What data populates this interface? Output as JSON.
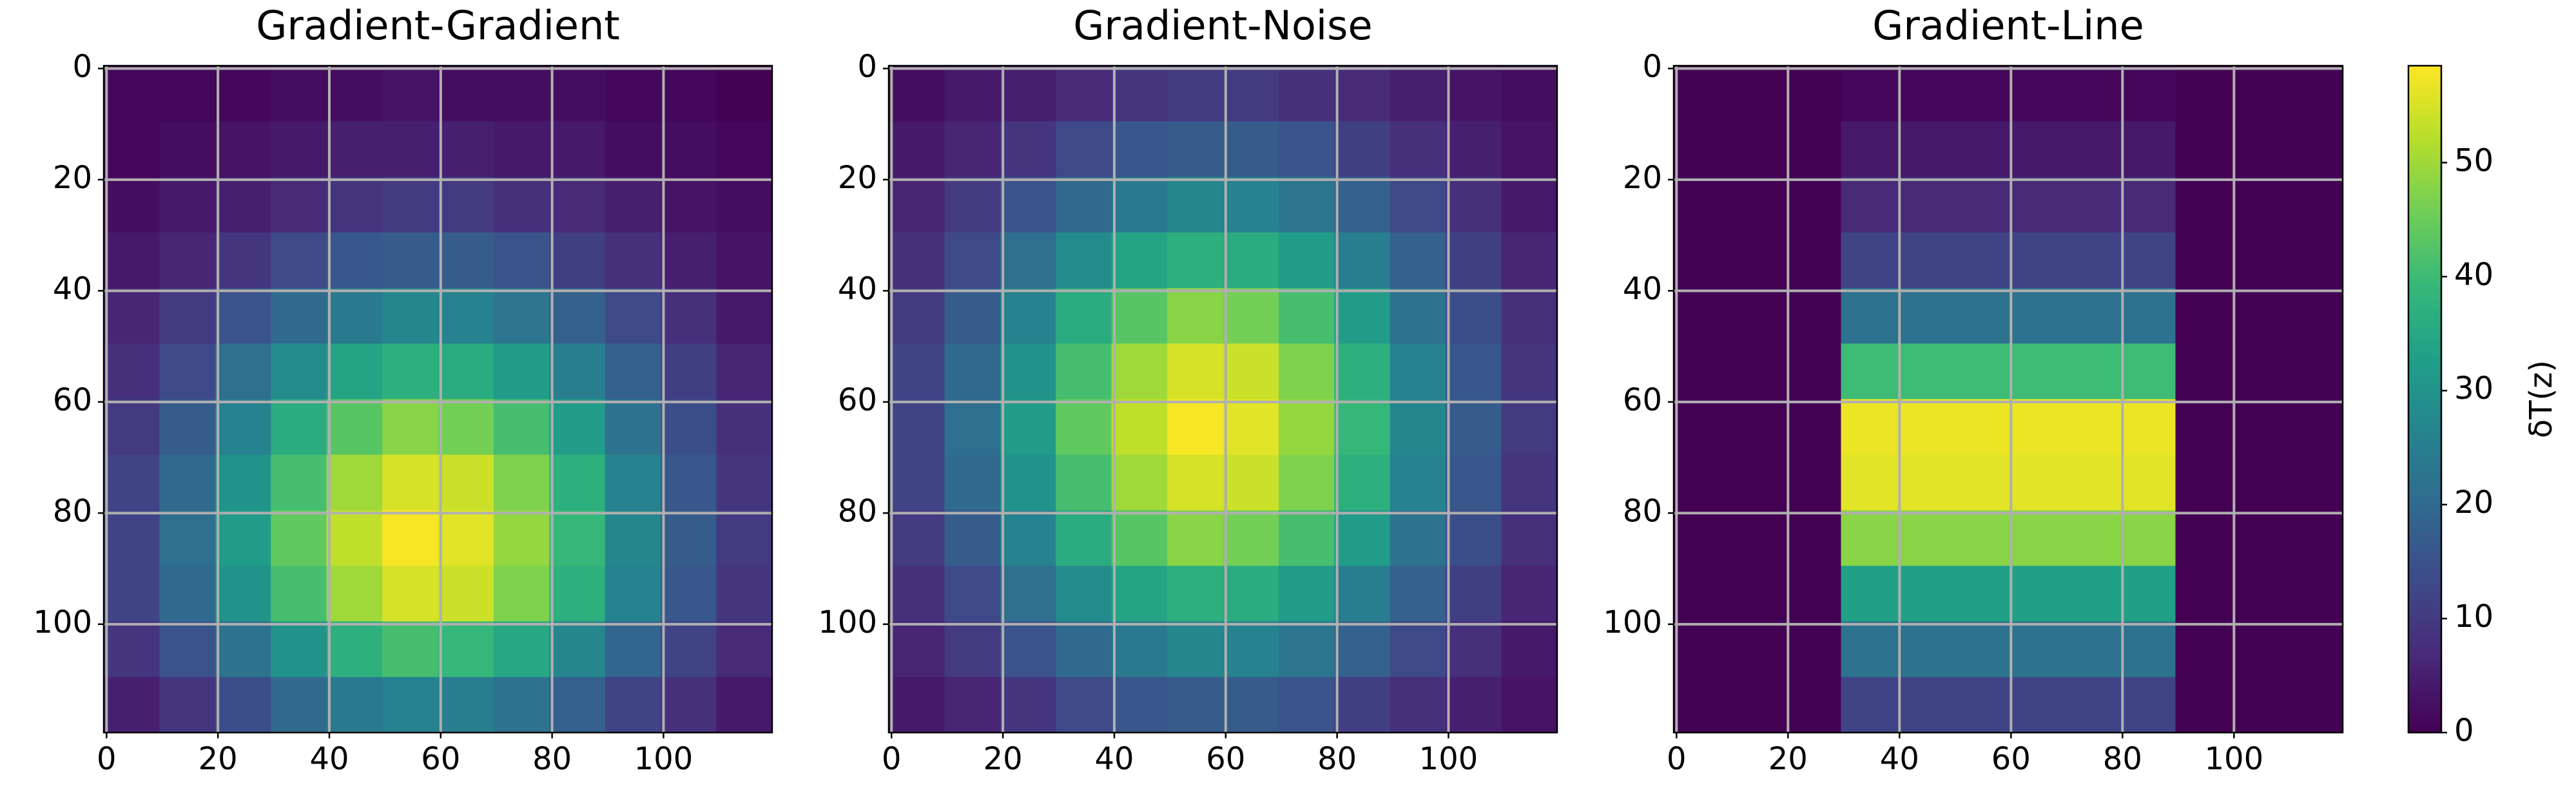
{
  "chart_data": [
    {
      "type": "heatmap",
      "title": "Gradient-Gradient",
      "x": [
        4.5,
        14.5,
        24.5,
        34.5,
        44.5,
        54.5,
        64.5,
        74.5,
        84.5,
        94.5,
        104.5,
        114.5
      ],
      "y": [
        4.5,
        14.5,
        24.5,
        34.5,
        44.5,
        54.5,
        64.5,
        74.5,
        84.5,
        94.5,
        104.5,
        114.5
      ],
      "values": [
        [
          1,
          1,
          1,
          2,
          2,
          3,
          2,
          2,
          2,
          1,
          1,
          0
        ],
        [
          1,
          2,
          3,
          4,
          5,
          5,
          5,
          4,
          4,
          2,
          2,
          1
        ],
        [
          2,
          4,
          5,
          7,
          9,
          10,
          10,
          8,
          7,
          5,
          3,
          2
        ],
        [
          4,
          6,
          9,
          13,
          16,
          17,
          17,
          15,
          11,
          8,
          5,
          3
        ],
        [
          6,
          10,
          15,
          20,
          24,
          27,
          26,
          23,
          18,
          13,
          8,
          4
        ],
        [
          8,
          13,
          21,
          28,
          34,
          37,
          36,
          32,
          25,
          18,
          11,
          6
        ],
        [
          10,
          17,
          26,
          36,
          43,
          48,
          46,
          41,
          32,
          22,
          14,
          8
        ],
        [
          12,
          20,
          30,
          41,
          50,
          55,
          54,
          47,
          37,
          26,
          16,
          9
        ],
        [
          12,
          21,
          32,
          44,
          53,
          58,
          56,
          49,
          39,
          27,
          17,
          10
        ],
        [
          12,
          20,
          30,
          41,
          50,
          55,
          54,
          47,
          37,
          26,
          16,
          9
        ],
        [
          9,
          15,
          22,
          30,
          37,
          41,
          39,
          35,
          27,
          19,
          12,
          7
        ],
        [
          5,
          9,
          14,
          20,
          24,
          26,
          25,
          22,
          18,
          12,
          8,
          4
        ]
      ],
      "xlim": [
        -0.5,
        119.5
      ],
      "ylim": [
        119.5,
        -0.5
      ],
      "xticks": [
        0,
        20,
        40,
        60,
        80,
        100
      ],
      "yticks": [
        0,
        20,
        40,
        60,
        80,
        100
      ],
      "grid": true
    },
    {
      "type": "heatmap",
      "title": "Gradient-Noise",
      "x": [
        4.5,
        14.5,
        24.5,
        34.5,
        44.5,
        54.5,
        64.5,
        74.5,
        84.5,
        94.5,
        104.5,
        114.5
      ],
      "y": [
        4.5,
        14.5,
        24.5,
        34.5,
        44.5,
        54.5,
        64.5,
        74.5,
        84.5,
        94.5,
        104.5,
        114.5
      ],
      "values": [
        [
          2,
          4,
          5,
          7,
          9,
          10,
          10,
          8,
          7,
          5,
          3,
          2
        ],
        [
          4,
          6,
          9,
          13,
          16,
          17,
          17,
          15,
          11,
          8,
          5,
          3
        ],
        [
          6,
          10,
          15,
          20,
          24,
          27,
          26,
          23,
          18,
          13,
          8,
          4
        ],
        [
          8,
          13,
          21,
          28,
          34,
          37,
          36,
          32,
          25,
          18,
          11,
          6
        ],
        [
          10,
          17,
          26,
          36,
          43,
          48,
          46,
          41,
          32,
          22,
          14,
          8
        ],
        [
          12,
          20,
          30,
          41,
          50,
          55,
          54,
          47,
          37,
          26,
          16,
          9
        ],
        [
          12,
          21,
          32,
          44,
          53,
          58,
          56,
          49,
          39,
          27,
          17,
          10
        ],
        [
          12,
          20,
          30,
          41,
          50,
          55,
          54,
          47,
          37,
          26,
          16,
          9
        ],
        [
          10,
          17,
          26,
          36,
          43,
          48,
          46,
          41,
          32,
          22,
          14,
          8
        ],
        [
          8,
          13,
          21,
          28,
          34,
          37,
          36,
          32,
          25,
          18,
          11,
          6
        ],
        [
          6,
          10,
          15,
          20,
          24,
          27,
          26,
          23,
          18,
          13,
          8,
          4
        ],
        [
          4,
          6,
          9,
          13,
          16,
          17,
          17,
          15,
          11,
          8,
          5,
          3
        ]
      ],
      "xlim": [
        -0.5,
        119.5
      ],
      "ylim": [
        119.5,
        -0.5
      ],
      "xticks": [
        0,
        20,
        40,
        60,
        80,
        100
      ],
      "yticks": [
        0,
        20,
        40,
        60,
        80,
        100
      ],
      "grid": true
    },
    {
      "type": "heatmap",
      "title": "Gradient-Line",
      "x": [
        4.5,
        14.5,
        24.5,
        34.5,
        44.5,
        54.5,
        64.5,
        74.5,
        84.5,
        94.5,
        104.5,
        114.5
      ],
      "y": [
        4.5,
        14.5,
        24.5,
        34.5,
        44.5,
        54.5,
        64.5,
        74.5,
        84.5,
        94.5,
        104.5,
        114.5
      ],
      "values": [
        [
          0,
          0,
          0,
          1,
          1,
          1,
          1,
          1,
          1,
          0,
          0,
          0
        ],
        [
          0,
          0,
          0,
          4,
          4,
          4,
          4,
          4,
          4,
          0,
          0,
          0
        ],
        [
          0,
          0,
          0,
          7,
          7,
          7,
          7,
          7,
          7,
          0,
          0,
          0
        ],
        [
          0,
          0,
          0,
          12,
          12,
          12,
          12,
          12,
          12,
          0,
          0,
          0
        ],
        [
          0,
          0,
          0,
          22,
          22,
          22,
          22,
          22,
          22,
          0,
          0,
          0
        ],
        [
          0,
          0,
          0,
          40,
          40,
          40,
          40,
          40,
          40,
          0,
          0,
          0
        ],
        [
          0,
          0,
          0,
          57,
          57,
          57,
          57,
          57,
          57,
          0,
          0,
          0
        ],
        [
          0,
          0,
          0,
          56,
          56,
          56,
          56,
          56,
          56,
          0,
          0,
          0
        ],
        [
          0,
          0,
          0,
          48,
          48,
          48,
          48,
          48,
          48,
          0,
          0,
          0
        ],
        [
          0,
          0,
          0,
          33,
          33,
          33,
          33,
          33,
          33,
          0,
          0,
          0
        ],
        [
          0,
          0,
          0,
          22,
          22,
          22,
          22,
          22,
          22,
          0,
          0,
          0
        ],
        [
          0,
          0,
          0,
          12,
          12,
          12,
          12,
          12,
          12,
          0,
          0,
          0
        ]
      ],
      "xlim": [
        -0.5,
        119.5
      ],
      "ylim": [
        119.5,
        -0.5
      ],
      "xticks": [
        0,
        20,
        40,
        60,
        80,
        100
      ],
      "yticks": [
        0,
        20,
        40,
        60,
        80,
        100
      ],
      "grid": true
    }
  ],
  "colorbar": {
    "label": "δT(z)",
    "colormap": "viridis",
    "zlim": [
      0,
      58.5
    ],
    "ticks": [
      0,
      10,
      20,
      30,
      40,
      50
    ]
  }
}
